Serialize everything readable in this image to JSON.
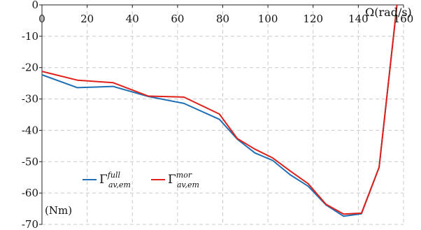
{
  "chart_data": {
    "type": "line",
    "title": "",
    "xlabel": "Ω(rad/s)",
    "ylabel": "(Nm)",
    "xlim": [
      0,
      160
    ],
    "ylim": [
      -70,
      0
    ],
    "x_ticks": [
      "0",
      "20",
      "40",
      "60",
      "80",
      "100",
      "120",
      "140",
      "160"
    ],
    "y_ticks": [
      "0",
      "-10",
      "-20",
      "-30",
      "-40",
      "-50",
      "-60",
      "-70"
    ],
    "grid": true,
    "legend_position": "bottom-left",
    "series": [
      {
        "name": "Γ_{av,em}^{full}",
        "legend_main": "Γ",
        "legend_sup": "full",
        "legend_sub": "av,em",
        "color": "#1f6fb5",
        "x": [
          0,
          15.7,
          31.4,
          47.1,
          62.8,
          78.5,
          86.4,
          94.2,
          102.1,
          109.9,
          117.8,
          125.7,
          133.5,
          141.4,
          149.2,
          157.1
        ],
        "y": [
          -22.3,
          -26.4,
          -26.0,
          -29.2,
          -31.4,
          -36.5,
          -42.8,
          -47.2,
          -49.6,
          -54.2,
          -57.8,
          -63.8,
          -67.4,
          -66.6,
          -51.8,
          0.0
        ]
      },
      {
        "name": "Γ_{av,em}^{mor}",
        "legend_main": "Γ",
        "legend_sup": "mor",
        "legend_sub": "av,em",
        "color": "#e0201b",
        "x": [
          0,
          15.7,
          31.4,
          47.1,
          62.8,
          78.5,
          86.4,
          94.2,
          102.1,
          109.9,
          117.8,
          125.7,
          133.5,
          141.4,
          149.2,
          157.1
        ],
        "y": [
          -21.2,
          -24.0,
          -24.8,
          -29.1,
          -29.4,
          -34.8,
          -42.6,
          -46.0,
          -48.8,
          -53.0,
          -57.0,
          -63.6,
          -66.7,
          -66.4,
          -51.8,
          0.0
        ]
      }
    ]
  }
}
